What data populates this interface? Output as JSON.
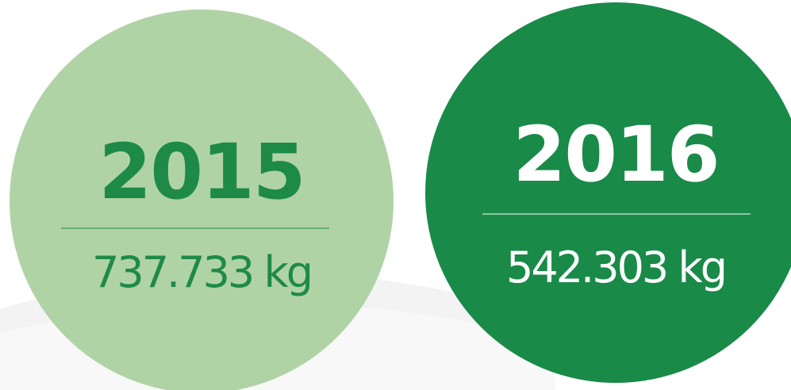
{
  "items": [
    {
      "year": "2015",
      "value": "737.733 kg"
    },
    {
      "year": "2016",
      "value": "542.303 kg"
    }
  ]
}
